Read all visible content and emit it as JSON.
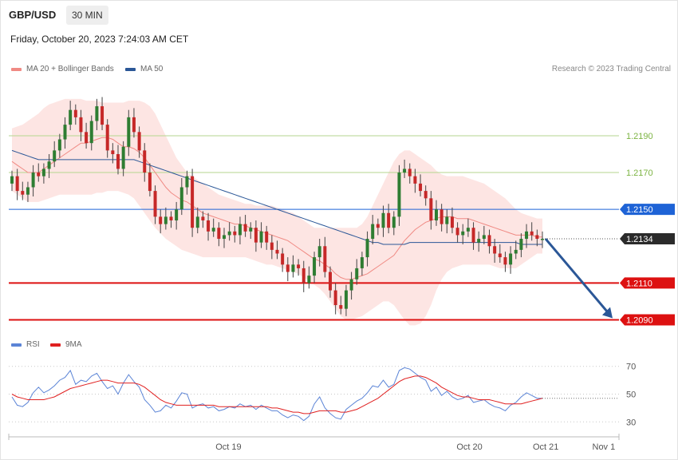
{
  "header": {
    "pair": "GBP/USD",
    "timeframe": "30 MIN",
    "timestamp": "Friday, October 20, 2023 7:24:03 AM CET",
    "credit": "Research © 2023 Trading Central"
  },
  "legend_main": [
    {
      "label": "MA 20 + Bollinger Bands",
      "color": "#f08a84"
    },
    {
      "label": "MA 50",
      "color": "#2b5797"
    }
  ],
  "legend_rsi": [
    {
      "label": "RSI",
      "color": "#5b84d6"
    },
    {
      "label": "9MA",
      "color": "#e02020"
    }
  ],
  "chart_data": [
    {
      "type": "candlestick",
      "price_range": [
        1.2085,
        1.2216
      ],
      "levels": [
        {
          "label": "1.2190",
          "value": 1.219,
          "color": "#7cb342",
          "kind": "resistance"
        },
        {
          "label": "1.2170",
          "value": 1.217,
          "color": "#7cb342",
          "kind": "resistance"
        },
        {
          "label": "1.2150",
          "value": 1.215,
          "color": "#1e63d6",
          "kind": "pivot"
        },
        {
          "label": "1.2134",
          "value": 1.2134,
          "color": "#333333",
          "kind": "last-price"
        },
        {
          "label": "1.2110",
          "value": 1.211,
          "color": "#dd1111",
          "kind": "support"
        },
        {
          "label": "1.2090",
          "value": 1.209,
          "color": "#dd1111",
          "kind": "support"
        }
      ],
      "closes": [
        1.2168,
        1.216,
        1.2158,
        1.2162,
        1.217,
        1.2168,
        1.2172,
        1.2176,
        1.2182,
        1.2188,
        1.2196,
        1.2204,
        1.22,
        1.2192,
        1.2186,
        1.2198,
        1.2206,
        1.2196,
        1.2182,
        1.218,
        1.2172,
        1.2184,
        1.22,
        1.2192,
        1.2182,
        1.217,
        1.216,
        1.2146,
        1.2142,
        1.2146,
        1.2144,
        1.215,
        1.2162,
        1.2168,
        1.214,
        1.2146,
        1.2144,
        1.2138,
        1.214,
        1.2134,
        1.2136,
        1.2138,
        1.2136,
        1.2142,
        1.2138,
        1.214,
        1.2132,
        1.2138,
        1.2132,
        1.2128,
        1.2126,
        1.212,
        1.2116,
        1.212,
        1.2118,
        1.211,
        1.2114,
        1.2124,
        1.213,
        1.2116,
        1.2106,
        1.2098,
        1.2096,
        1.2106,
        1.2112,
        1.2118,
        1.2124,
        1.2134,
        1.2142,
        1.214,
        1.2148,
        1.214,
        1.2146,
        1.217,
        1.2172,
        1.2168,
        1.2164,
        1.216,
        1.2156,
        1.2144,
        1.215,
        1.2142,
        1.2146,
        1.214,
        1.2136,
        1.2138,
        1.214,
        1.2132,
        1.2134,
        1.2136,
        1.213,
        1.2126,
        1.2124,
        1.212,
        1.2126,
        1.2128,
        1.2134,
        1.2138,
        1.2136,
        1.2134,
        1.2134
      ],
      "ma20": [
        1.2176,
        1.2174,
        1.2172,
        1.217,
        1.217,
        1.217,
        1.2172,
        1.2174,
        1.2176,
        1.2178,
        1.218,
        1.2182,
        1.2184,
        1.2186,
        1.2186,
        1.2187,
        1.2188,
        1.2189,
        1.2189,
        1.2188,
        1.2186,
        1.2184,
        1.2184,
        1.2183,
        1.2181,
        1.2178,
        1.2174,
        1.217,
        1.2166,
        1.2162,
        1.2159,
        1.2157,
        1.2155,
        1.2154,
        1.2152,
        1.215,
        1.2148,
        1.2147,
        1.2146,
        1.2145,
        1.2144,
        1.2143,
        1.2142,
        1.2142,
        1.2141,
        1.214,
        1.2139,
        1.2138,
        1.2137,
        1.2136,
        1.2135,
        1.2134,
        1.2133,
        1.2131,
        1.2129,
        1.2127,
        1.2125,
        1.2123,
        1.2122,
        1.212,
        1.2118,
        1.2115,
        1.2113,
        1.2112,
        1.2112,
        1.2113,
        1.2114,
        1.2115,
        1.2117,
        1.2119,
        1.2121,
        1.2123,
        1.2125,
        1.2129,
        1.2133,
        1.2136,
        1.2139,
        1.2141,
        1.2143,
        1.2144,
        1.2145,
        1.2146,
        1.2146,
        1.2146,
        1.2145,
        1.2145,
        1.2145,
        1.2144,
        1.2143,
        1.2142,
        1.2141,
        1.214,
        1.2139,
        1.2138,
        1.2137,
        1.2136,
        1.2136,
        1.2136,
        1.2136,
        1.2135,
        1.2135
      ],
      "ma50": [
        1.2182,
        1.2181,
        1.218,
        1.2179,
        1.2178,
        1.2177,
        1.2177,
        1.2177,
        1.2177,
        1.2177,
        1.2177,
        1.2177,
        1.2177,
        1.2177,
        1.2177,
        1.2177,
        1.2177,
        1.2177,
        1.2177,
        1.2177,
        1.2177,
        1.2177,
        1.2177,
        1.2177,
        1.2176,
        1.2175,
        1.2174,
        1.2173,
        1.2172,
        1.2171,
        1.217,
        1.2169,
        1.2168,
        1.2167,
        1.2166,
        1.2165,
        1.2164,
        1.2163,
        1.2162,
        1.2161,
        1.216,
        1.2159,
        1.2158,
        1.2157,
        1.2156,
        1.2155,
        1.2154,
        1.2153,
        1.2152,
        1.2151,
        1.215,
        1.2149,
        1.2148,
        1.2147,
        1.2146,
        1.2145,
        1.2144,
        1.2143,
        1.2142,
        1.2141,
        1.214,
        1.2139,
        1.2138,
        1.2137,
        1.2136,
        1.2135,
        1.2134,
        1.2133,
        1.2132,
        1.2132,
        1.2131,
        1.2131,
        1.2131,
        1.2131,
        1.2131,
        1.2132,
        1.2132,
        1.2132,
        1.2132,
        1.2132,
        1.2132,
        1.2132,
        1.2132,
        1.2132,
        1.2132,
        1.2132,
        1.2132,
        1.2132,
        1.2132,
        1.2132,
        1.2132,
        1.2132,
        1.2132,
        1.2132,
        1.2132,
        1.2132,
        1.2131,
        1.2131,
        1.2131,
        1.2131,
        1.2131
      ],
      "bb_upper": [
        1.2194,
        1.2195,
        1.2196,
        1.2198,
        1.22,
        1.2202,
        1.2205,
        1.2207,
        1.2208,
        1.2209,
        1.221,
        1.221,
        1.221,
        1.221,
        1.2209,
        1.2209,
        1.2209,
        1.2208,
        1.2208,
        1.2208,
        1.2208,
        1.2208,
        1.2209,
        1.2209,
        1.2209,
        1.2208,
        1.2206,
        1.2202,
        1.2196,
        1.219,
        1.2184,
        1.2178,
        1.2174,
        1.217,
        1.2168,
        1.2166,
        1.2164,
        1.2162,
        1.216,
        1.2158,
        1.2157,
        1.2156,
        1.2155,
        1.2154,
        1.2153,
        1.2153,
        1.2152,
        1.2152,
        1.2152,
        1.2152,
        1.2151,
        1.215,
        1.2149,
        1.2148,
        1.2146,
        1.2144,
        1.2142,
        1.214,
        1.214,
        1.214,
        1.214,
        1.214,
        1.214,
        1.214,
        1.214,
        1.214,
        1.2142,
        1.2146,
        1.2152,
        1.2158,
        1.2164,
        1.217,
        1.2176,
        1.218,
        1.2182,
        1.2182,
        1.218,
        1.2178,
        1.2176,
        1.2174,
        1.2171,
        1.2169,
        1.2168,
        1.2168,
        1.2168,
        1.2168,
        1.2167,
        1.2166,
        1.2165,
        1.2164,
        1.2162,
        1.216,
        1.2158,
        1.2156,
        1.2153,
        1.215,
        1.2148,
        1.2147,
        1.2146,
        1.2145,
        1.2145
      ],
      "bb_lower": [
        1.216,
        1.2158,
        1.2156,
        1.2154,
        1.2154,
        1.2154,
        1.2155,
        1.2156,
        1.2157,
        1.2158,
        1.2158,
        1.2158,
        1.2158,
        1.2158,
        1.2158,
        1.2158,
        1.2159,
        1.2159,
        1.216,
        1.216,
        1.216,
        1.2159,
        1.2158,
        1.2156,
        1.2152,
        1.2148,
        1.2144,
        1.214,
        1.2137,
        1.2134,
        1.2132,
        1.213,
        1.2128,
        1.2127,
        1.2126,
        1.2125,
        1.2124,
        1.2124,
        1.2124,
        1.2124,
        1.2124,
        1.2124,
        1.2124,
        1.2124,
        1.2124,
        1.2123,
        1.2122,
        1.2121,
        1.212,
        1.212,
        1.2119,
        1.2118,
        1.2117,
        1.2116,
        1.2115,
        1.2113,
        1.2111,
        1.2109,
        1.2107,
        1.2104,
        1.21,
        1.2096,
        1.2092,
        1.209,
        1.209,
        1.2091,
        1.2092,
        1.2094,
        1.2096,
        1.2098,
        1.21,
        1.21,
        1.2098,
        1.2094,
        1.209,
        1.2087,
        1.2087,
        1.2088,
        1.2092,
        1.2098,
        1.2106,
        1.2112,
        1.2116,
        1.2118,
        1.2119,
        1.212,
        1.212,
        1.212,
        1.212,
        1.212,
        1.212,
        1.2119,
        1.2118,
        1.2118,
        1.2118,
        1.2118,
        1.212,
        1.2122,
        1.2124,
        1.2126,
        1.2126
      ]
    },
    {
      "type": "line",
      "title": "RSI",
      "y_ticks": [
        70,
        50,
        30
      ],
      "ylim": [
        25,
        75
      ],
      "series": [
        {
          "name": "RSI",
          "color": "#5b84d6",
          "values": [
            48,
            42,
            41,
            44,
            51,
            55,
            51,
            53,
            56,
            60,
            62,
            67,
            57,
            60,
            59,
            63,
            65,
            59,
            54,
            56,
            50,
            58,
            64,
            59,
            55,
            46,
            42,
            37,
            38,
            42,
            40,
            45,
            51,
            50,
            40,
            42,
            43,
            40,
            41,
            38,
            39,
            41,
            40,
            43,
            41,
            42,
            39,
            42,
            40,
            38,
            38,
            35,
            33,
            35,
            34,
            31,
            34,
            43,
            48,
            40,
            36,
            33,
            32,
            39,
            42,
            45,
            47,
            51,
            56,
            55,
            60,
            55,
            57,
            67,
            69,
            68,
            65,
            62,
            60,
            52,
            55,
            49,
            52,
            48,
            46,
            47,
            49,
            44,
            45,
            46,
            43,
            41,
            40,
            38,
            42,
            44,
            48,
            51,
            49,
            47,
            47
          ]
        },
        {
          "name": "9MA",
          "color": "#e02020",
          "values": [
            50,
            48,
            47,
            46,
            46,
            46,
            46,
            47,
            48,
            50,
            52,
            54,
            55,
            56,
            57,
            58,
            59,
            60,
            60,
            59,
            58,
            58,
            58,
            58,
            57,
            55,
            52,
            49,
            46,
            44,
            43,
            42,
            42,
            42,
            42,
            42,
            42,
            42,
            42,
            41,
            41,
            41,
            41,
            41,
            41,
            41,
            41,
            41,
            41,
            40,
            40,
            39,
            38,
            37,
            37,
            36,
            36,
            37,
            38,
            38,
            38,
            38,
            37,
            37,
            38,
            39,
            41,
            43,
            45,
            47,
            50,
            53,
            56,
            59,
            61,
            62,
            63,
            63,
            62,
            60,
            58,
            55,
            53,
            51,
            49,
            48,
            48,
            47,
            46,
            46,
            46,
            45,
            44,
            43,
            43,
            43,
            43,
            44,
            45,
            46,
            47
          ]
        }
      ]
    }
  ],
  "x_axis": {
    "ticks": [
      {
        "label": "Oct 19",
        "pos": 0.36
      },
      {
        "label": "Oct 20",
        "pos": 0.755
      },
      {
        "label": "Oct 21",
        "pos": 0.88
      },
      {
        "label": "Nov 1",
        "pos": 0.975
      }
    ]
  },
  "forecast_arrow": {
    "direction": "down",
    "target": 1.209,
    "color": "#2b5797"
  }
}
